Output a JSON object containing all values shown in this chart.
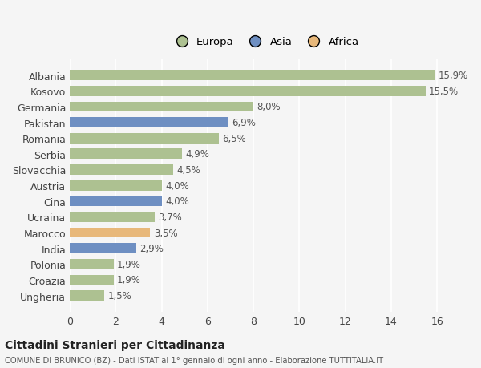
{
  "countries": [
    "Albania",
    "Kosovo",
    "Germania",
    "Pakistan",
    "Romania",
    "Serbia",
    "Slovacchia",
    "Austria",
    "Cina",
    "Ucraina",
    "Marocco",
    "India",
    "Polonia",
    "Croazia",
    "Ungheria"
  ],
  "values": [
    15.9,
    15.5,
    8.0,
    6.9,
    6.5,
    4.9,
    4.5,
    4.0,
    4.0,
    3.7,
    3.5,
    2.9,
    1.9,
    1.9,
    1.5
  ],
  "labels": [
    "15,9%",
    "15,5%",
    "8,0%",
    "6,9%",
    "6,5%",
    "4,9%",
    "4,5%",
    "4,0%",
    "4,0%",
    "3,7%",
    "3,5%",
    "2,9%",
    "1,9%",
    "1,9%",
    "1,5%"
  ],
  "continents": [
    "Europa",
    "Europa",
    "Europa",
    "Asia",
    "Europa",
    "Europa",
    "Europa",
    "Europa",
    "Asia",
    "Europa",
    "Africa",
    "Asia",
    "Europa",
    "Europa",
    "Europa"
  ],
  "colors": {
    "Europa": "#adc191",
    "Asia": "#6e8fc2",
    "Africa": "#e8b87a"
  },
  "background_color": "#f5f5f5",
  "title": "Cittadini Stranieri per Cittadinanza",
  "subtitle": "COMUNE DI BRUNICO (BZ) - Dati ISTAT al 1° gennaio di ogni anno - Elaborazione TUTTITALIA.IT",
  "xlim": [
    0,
    17
  ],
  "xticks": [
    0,
    2,
    4,
    6,
    8,
    10,
    12,
    14,
    16
  ]
}
